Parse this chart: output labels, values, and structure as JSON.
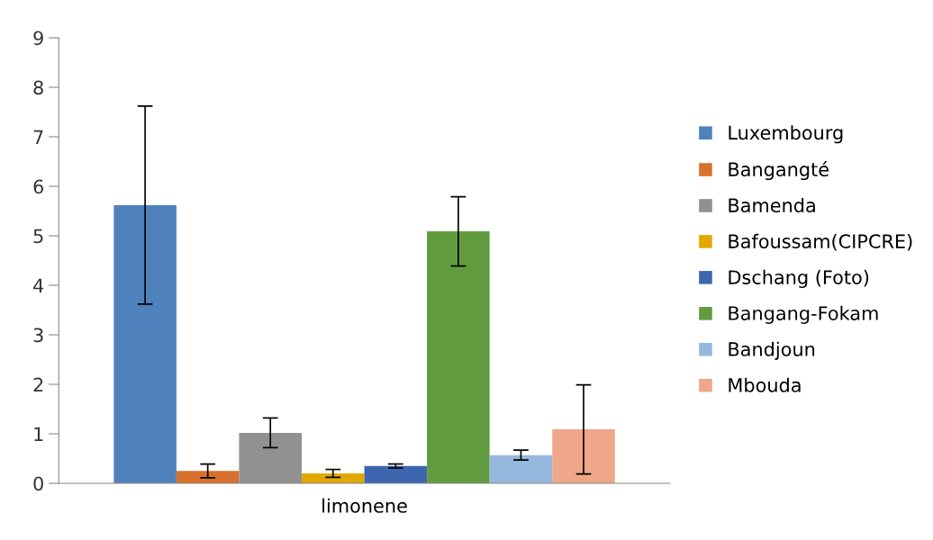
{
  "chart_data": {
    "type": "bar",
    "categories": [
      "limonene"
    ],
    "ylim": [
      0,
      9
    ],
    "yticks": [
      0,
      1,
      2,
      3,
      4,
      5,
      6,
      7,
      8,
      9
    ],
    "grid": false,
    "legend": "right",
    "series": [
      {
        "name": "Luxembourg",
        "color": "#4f81bd",
        "values": [
          5.62
        ],
        "errors": [
          2.0
        ]
      },
      {
        "name": "Bangangté",
        "color": "#d8702d",
        "values": [
          0.25
        ],
        "errors": [
          0.14
        ]
      },
      {
        "name": "Bamenda",
        "color": "#919191",
        "values": [
          1.02
        ],
        "errors": [
          0.3
        ]
      },
      {
        "name": "Bafoussam(CIPCRE)",
        "color": "#e0a800",
        "values": [
          0.2
        ],
        "errors": [
          0.08
        ]
      },
      {
        "name": "Dschang (Foto)",
        "color": "#3d66ae",
        "values": [
          0.35
        ],
        "errors": [
          0.04
        ]
      },
      {
        "name": "Bangang-Fokam",
        "color": "#629b3f",
        "values": [
          5.09
        ],
        "errors": [
          0.7
        ]
      },
      {
        "name": "Bandjoun",
        "color": "#97b8de",
        "values": [
          0.57
        ],
        "errors": [
          0.1
        ]
      },
      {
        "name": "Mbouda",
        "color": "#f0a688",
        "values": [
          1.09
        ],
        "errors": [
          0.9
        ]
      }
    ]
  }
}
